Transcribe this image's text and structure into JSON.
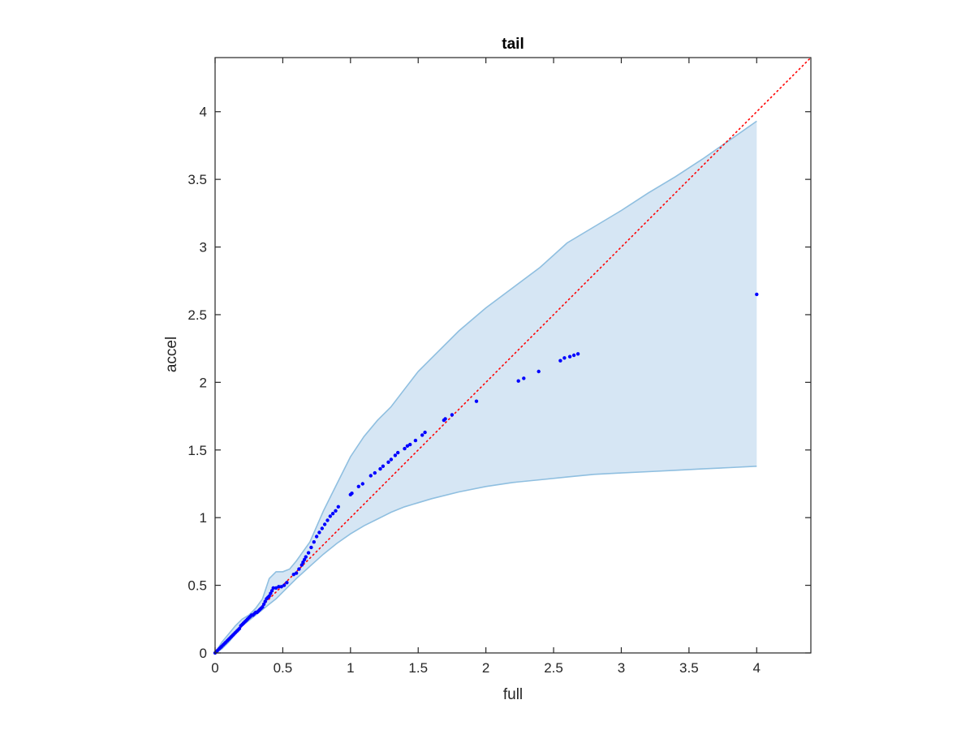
{
  "chart_data": {
    "type": "scatter",
    "title": "tail",
    "xlabel": "full",
    "ylabel": "accel",
    "xlim": [
      0,
      4.4
    ],
    "ylim": [
      0,
      4.4
    ],
    "grid": false,
    "x_ticks": [
      0,
      0.5,
      1,
      1.5,
      2,
      2.5,
      3,
      3.5,
      4
    ],
    "x_tick_labels": [
      "0",
      "0.5",
      "1",
      "1.5",
      "2",
      "2.5",
      "3",
      "3.5",
      "4"
    ],
    "y_ticks": [
      0,
      0.5,
      1,
      1.5,
      2,
      2.5,
      3,
      3.5,
      4
    ],
    "y_tick_labels": [
      "0",
      "0.5",
      "1",
      "1.5",
      "2",
      "2.5",
      "3",
      "3.5",
      "4"
    ],
    "colors": {
      "points": "#0000ff",
      "reference_line": "#ff0000",
      "band_fill": "#d6e6f4",
      "band_edge": "#8fbfe0",
      "axes": "#262626"
    },
    "reference_line": {
      "style": "dotted",
      "points": [
        [
          0,
          0
        ],
        [
          4.4,
          4.4
        ]
      ]
    },
    "band": {
      "upper": [
        [
          0,
          0
        ],
        [
          0.05,
          0.08
        ],
        [
          0.1,
          0.14
        ],
        [
          0.15,
          0.2
        ],
        [
          0.2,
          0.25
        ],
        [
          0.25,
          0.28
        ],
        [
          0.3,
          0.33
        ],
        [
          0.35,
          0.4
        ],
        [
          0.4,
          0.55
        ],
        [
          0.45,
          0.6
        ],
        [
          0.5,
          0.6
        ],
        [
          0.55,
          0.62
        ],
        [
          0.6,
          0.68
        ],
        [
          0.7,
          0.82
        ],
        [
          0.8,
          1.05
        ],
        [
          0.9,
          1.25
        ],
        [
          1,
          1.45
        ],
        [
          1.1,
          1.6
        ],
        [
          1.2,
          1.72
        ],
        [
          1.3,
          1.82
        ],
        [
          1.4,
          1.95
        ],
        [
          1.5,
          2.08
        ],
        [
          1.6,
          2.18
        ],
        [
          1.8,
          2.38
        ],
        [
          2,
          2.55
        ],
        [
          2.2,
          2.7
        ],
        [
          2.4,
          2.85
        ],
        [
          2.6,
          3.03
        ],
        [
          2.8,
          3.15
        ],
        [
          3,
          3.27
        ],
        [
          3.2,
          3.4
        ],
        [
          3.4,
          3.52
        ],
        [
          3.6,
          3.65
        ],
        [
          3.8,
          3.79
        ],
        [
          4,
          3.93
        ]
      ],
      "lower": [
        [
          0,
          0
        ],
        [
          0.05,
          0.03
        ],
        [
          0.1,
          0.08
        ],
        [
          0.15,
          0.14
        ],
        [
          0.2,
          0.2
        ],
        [
          0.25,
          0.24
        ],
        [
          0.3,
          0.28
        ],
        [
          0.35,
          0.32
        ],
        [
          0.4,
          0.36
        ],
        [
          0.45,
          0.4
        ],
        [
          0.5,
          0.45
        ],
        [
          0.55,
          0.5
        ],
        [
          0.6,
          0.55
        ],
        [
          0.7,
          0.64
        ],
        [
          0.8,
          0.73
        ],
        [
          0.9,
          0.81
        ],
        [
          1,
          0.88
        ],
        [
          1.1,
          0.94
        ],
        [
          1.2,
          0.99
        ],
        [
          1.3,
          1.04
        ],
        [
          1.4,
          1.08
        ],
        [
          1.5,
          1.11
        ],
        [
          1.6,
          1.14
        ],
        [
          1.8,
          1.19
        ],
        [
          2,
          1.23
        ],
        [
          2.2,
          1.26
        ],
        [
          2.4,
          1.28
        ],
        [
          2.6,
          1.3
        ],
        [
          2.8,
          1.32
        ],
        [
          3,
          1.33
        ],
        [
          3.2,
          1.34
        ],
        [
          3.4,
          1.35
        ],
        [
          3.6,
          1.36
        ],
        [
          3.8,
          1.37
        ],
        [
          4,
          1.38
        ]
      ]
    },
    "points": [
      [
        0,
        0
      ],
      [
        0.01,
        0.01
      ],
      [
        0.02,
        0.02
      ],
      [
        0.03,
        0.03
      ],
      [
        0.04,
        0.04
      ],
      [
        0.05,
        0.05
      ],
      [
        0.06,
        0.06
      ],
      [
        0.07,
        0.07
      ],
      [
        0.08,
        0.08
      ],
      [
        0.09,
        0.09
      ],
      [
        0.1,
        0.1
      ],
      [
        0.11,
        0.11
      ],
      [
        0.12,
        0.12
      ],
      [
        0.13,
        0.13
      ],
      [
        0.14,
        0.14
      ],
      [
        0.15,
        0.15
      ],
      [
        0.16,
        0.16
      ],
      [
        0.17,
        0.17
      ],
      [
        0.18,
        0.18
      ],
      [
        0.19,
        0.2
      ],
      [
        0.2,
        0.21
      ],
      [
        0.21,
        0.22
      ],
      [
        0.22,
        0.23
      ],
      [
        0.23,
        0.24
      ],
      [
        0.24,
        0.25
      ],
      [
        0.25,
        0.26
      ],
      [
        0.26,
        0.27
      ],
      [
        0.27,
        0.28
      ],
      [
        0.28,
        0.28
      ],
      [
        0.29,
        0.29
      ],
      [
        0.3,
        0.3
      ],
      [
        0.31,
        0.3
      ],
      [
        0.32,
        0.31
      ],
      [
        0.33,
        0.32
      ],
      [
        0.34,
        0.33
      ],
      [
        0.35,
        0.34
      ],
      [
        0.36,
        0.36
      ],
      [
        0.37,
        0.38
      ],
      [
        0.38,
        0.4
      ],
      [
        0.39,
        0.41
      ],
      [
        0.4,
        0.42
      ],
      [
        0.41,
        0.44
      ],
      [
        0.42,
        0.46
      ],
      [
        0.43,
        0.48
      ],
      [
        0.45,
        0.48
      ],
      [
        0.47,
        0.49
      ],
      [
        0.49,
        0.49
      ],
      [
        0.51,
        0.5
      ],
      [
        0.53,
        0.52
      ],
      [
        0.58,
        0.58
      ],
      [
        0.6,
        0.59
      ],
      [
        0.62,
        0.62
      ],
      [
        0.64,
        0.65
      ],
      [
        0.65,
        0.67
      ],
      [
        0.66,
        0.69
      ],
      [
        0.67,
        0.71
      ],
      [
        0.69,
        0.74
      ],
      [
        0.71,
        0.78
      ],
      [
        0.73,
        0.82
      ],
      [
        0.75,
        0.86
      ],
      [
        0.77,
        0.89
      ],
      [
        0.79,
        0.92
      ],
      [
        0.81,
        0.95
      ],
      [
        0.83,
        0.98
      ],
      [
        0.85,
        1.01
      ],
      [
        0.87,
        1.03
      ],
      [
        0.89,
        1.05
      ],
      [
        0.91,
        1.08
      ],
      [
        1,
        1.17
      ],
      [
        1.01,
        1.18
      ],
      [
        1.06,
        1.23
      ],
      [
        1.09,
        1.25
      ],
      [
        1.15,
        1.31
      ],
      [
        1.18,
        1.33
      ],
      [
        1.22,
        1.36
      ],
      [
        1.24,
        1.38
      ],
      [
        1.28,
        1.41
      ],
      [
        1.3,
        1.43
      ],
      [
        1.33,
        1.46
      ],
      [
        1.35,
        1.48
      ],
      [
        1.4,
        1.51
      ],
      [
        1.42,
        1.53
      ],
      [
        1.44,
        1.54
      ],
      [
        1.48,
        1.57
      ],
      [
        1.53,
        1.61
      ],
      [
        1.55,
        1.63
      ],
      [
        1.69,
        1.72
      ],
      [
        1.7,
        1.73
      ],
      [
        1.75,
        1.76
      ],
      [
        1.93,
        1.86
      ],
      [
        2.24,
        2.01
      ],
      [
        2.28,
        2.03
      ],
      [
        2.39,
        2.08
      ],
      [
        2.55,
        2.16
      ],
      [
        2.58,
        2.18
      ],
      [
        2.62,
        2.19
      ],
      [
        2.65,
        2.2
      ],
      [
        2.68,
        2.21
      ],
      [
        4,
        2.65
      ]
    ]
  }
}
